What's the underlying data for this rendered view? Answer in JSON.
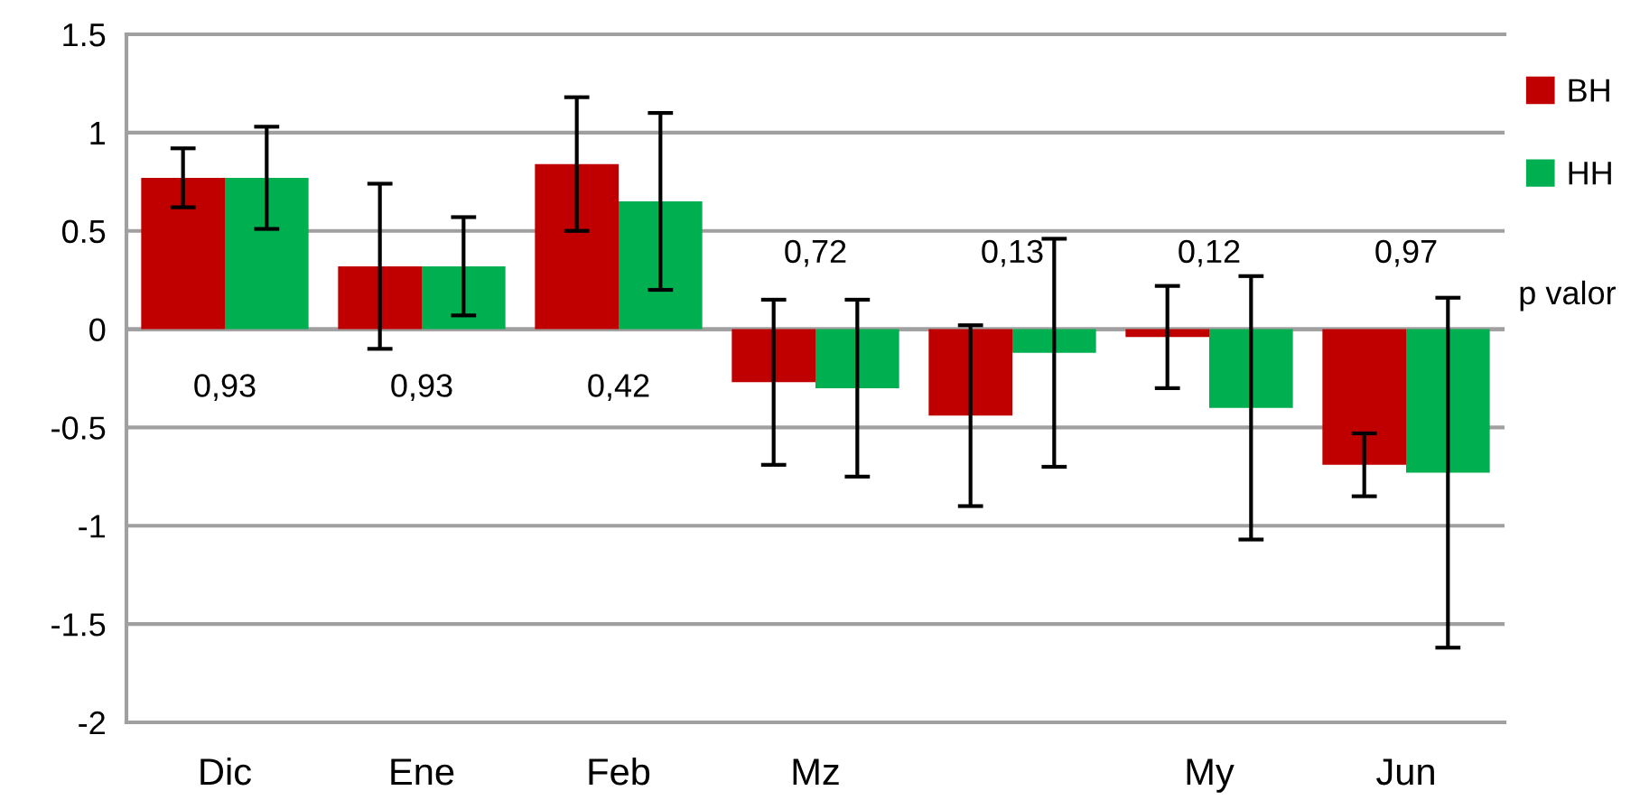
{
  "chart_data": {
    "type": "bar",
    "categories": [
      "Dic",
      "Ene",
      "Feb",
      "Mz",
      null,
      "My",
      "Jun"
    ],
    "series": [
      {
        "name": "BH",
        "color": "#c00000",
        "values": [
          0.77,
          0.32,
          0.84,
          -0.27,
          -0.44,
          -0.04,
          -0.69
        ],
        "errors": [
          0.15,
          0.42,
          0.34,
          0.42,
          0.46,
          0.26,
          0.16
        ]
      },
      {
        "name": "HH",
        "color": "#00b050",
        "values": [
          0.77,
          0.32,
          0.65,
          -0.3,
          -0.12,
          -0.4,
          -0.73
        ],
        "errors": [
          0.26,
          0.25,
          0.45,
          0.45,
          0.58,
          0.67,
          0.89
        ]
      }
    ],
    "ylim": [
      -2,
      1.5
    ],
    "yticks": [
      -2,
      -1.5,
      -1,
      -0.5,
      0,
      0.5,
      1,
      1.5
    ],
    "grid": "y",
    "legend": "right",
    "annotations": [
      "0,93",
      "0,93",
      "0,42",
      "0,72",
      "0,13",
      "0,12",
      "0,97",
      "p valor"
    ]
  }
}
